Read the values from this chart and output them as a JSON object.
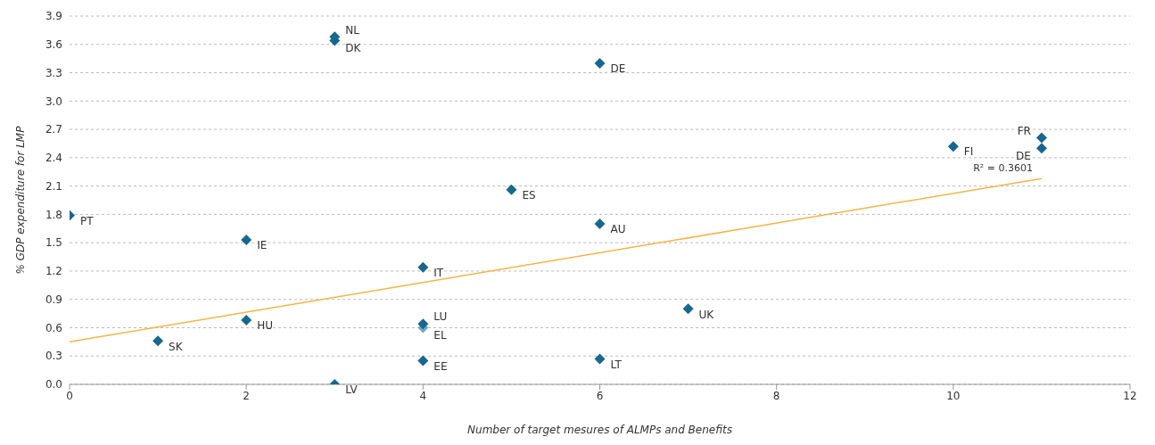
{
  "chart_data": {
    "type": "scatter",
    "xlabel": "Number of target mesures of ALMPs and Benefits",
    "ylabel": "% GDP expenditure for LMP",
    "xlim": [
      0,
      12
    ],
    "xticks": [
      0,
      2,
      4,
      6,
      8,
      10,
      12
    ],
    "ylim": [
      0,
      3.9
    ],
    "yticks": [
      {
        "value": 0,
        "label": "0.0"
      },
      0.3,
      0.6,
      0.9,
      1.2,
      1.5,
      1.8,
      2.1,
      2.4,
      2.7,
      {
        "value": 3,
        "label": "3.0"
      },
      3.3,
      3.6,
      3.9
    ],
    "grid": "y",
    "legend": false,
    "series": [
      {
        "marker": "diamond",
        "color": "#17678f",
        "x": [
          3,
          3,
          6,
          11,
          10,
          11,
          5,
          0,
          6,
          2,
          4,
          7,
          2,
          4,
          4,
          1,
          4,
          6,
          3
        ],
        "values": [
          3.68,
          3.64,
          3.4,
          2.61,
          2.52,
          2.5,
          2.06,
          1.79,
          1.7,
          1.53,
          1.24,
          0.8,
          0.68,
          0.64,
          0.6,
          0.46,
          0.25,
          0.27,
          0.0
        ],
        "colors": [
          "#17678f",
          "#17678f",
          "#17678f",
          "#17678f",
          "#17678f",
          "#17678f",
          "#17678f",
          "#17678f",
          "#17678f",
          "#17678f",
          "#17678f",
          "#17678f",
          "#17678f",
          "#17678f",
          "#6fa8c8",
          "#17678f",
          "#17678f",
          "#17678f",
          "#17678f"
        ]
      },
      {
        "type": "line",
        "color": "#f6b445",
        "x": [
          0,
          11
        ],
        "values": [
          0.45,
          2.18
        ]
      }
    ],
    "annotations": [
      {
        "text": "NL",
        "x": 3,
        "y": 3.68
      },
      {
        "text": "DK",
        "x": 3,
        "y": 3.64
      },
      {
        "text": "DE",
        "x": 6,
        "y": 3.4
      },
      {
        "text": "FR",
        "x": 11,
        "y": 2.61
      },
      {
        "text": "FI",
        "x": 10,
        "y": 2.52
      },
      {
        "text": "DE",
        "x": 11,
        "y": 2.5
      },
      {
        "text": "ES",
        "x": 5,
        "y": 2.06
      },
      {
        "text": "PT",
        "x": 0,
        "y": 1.79
      },
      {
        "text": "AU",
        "x": 6,
        "y": 1.7
      },
      {
        "text": "IE",
        "x": 2,
        "y": 1.53
      },
      {
        "text": "IT",
        "x": 4,
        "y": 1.24
      },
      {
        "text": "UK",
        "x": 7,
        "y": 0.8
      },
      {
        "text": "HU",
        "x": 2,
        "y": 0.68
      },
      {
        "text": "LU",
        "x": 4,
        "y": 0.64
      },
      {
        "text": "EL",
        "x": 4,
        "y": 0.6
      },
      {
        "text": "SK",
        "x": 1,
        "y": 0.46
      },
      {
        "text": "EE",
        "x": 4,
        "y": 0.25
      },
      {
        "text": "LT",
        "x": 6,
        "y": 0.27
      },
      {
        "text": "LV",
        "x": 3,
        "y": 0.0
      },
      "R² = 0.3601"
    ]
  }
}
